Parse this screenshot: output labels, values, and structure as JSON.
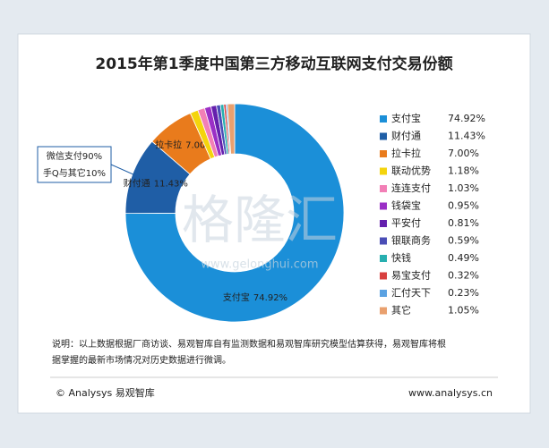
{
  "chart_data": {
    "type": "donut",
    "title": "2015年第1季度中国第三方移动互联网支付交易份额",
    "categories": [
      "支付宝",
      "财付通",
      "拉卡拉",
      "联动优势",
      "连连支付",
      "钱袋宝",
      "平安付",
      "银联商务",
      "快钱",
      "易宝支付",
      "汇付天下",
      "其它"
    ],
    "values": [
      74.92,
      11.43,
      7.0,
      1.18,
      1.03,
      0.95,
      0.81,
      0.59,
      0.49,
      0.32,
      0.23,
      1.05
    ],
    "value_labels": [
      "74.92%",
      "11.43%",
      "7.00%",
      "1.18%",
      "1.03%",
      "0.95%",
      "0.81%",
      "0.59%",
      "0.49%",
      "0.32%",
      "0.23%",
      "1.05%"
    ],
    "colors": [
      "#1b8fd8",
      "#1f5ea6",
      "#e97b1c",
      "#f4d40c",
      "#f27fb6",
      "#9a2fc6",
      "#6420ad",
      "#4a4db6",
      "#27afb0",
      "#d8403f",
      "#5ba2e2",
      "#e9a06e"
    ],
    "annotations": [
      "微信支付90%",
      "手Q与其它10%"
    ]
  },
  "note": [
    "说明：以上数据根据厂商访谈、易观智库自有监测数据和易观智库研究模型估算获得，易观智库将根",
    "据掌握的最新市场情况对历史数据进行微调。"
  ],
  "footer": {
    "copyright": "© Analysys 易观智库",
    "url": "www.analysys.cn"
  },
  "watermark": {
    "text": "格隆汇",
    "url": "www.gelonghui.com"
  }
}
